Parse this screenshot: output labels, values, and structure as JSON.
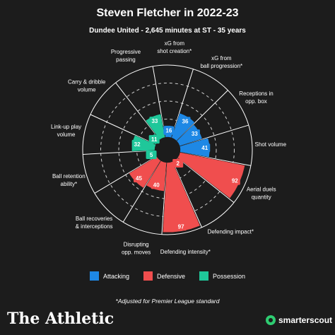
{
  "title": "Steven Fletcher in 2022-23",
  "subtitle": "Dundee United - 2,645 minutes at ST - 35 years",
  "legend": [
    {
      "label": "Attacking",
      "color": "#1e88e5"
    },
    {
      "label": "Defensive",
      "color": "#f04e4e"
    },
    {
      "label": "Possession",
      "color": "#1fc79a"
    }
  ],
  "footnote": "*Adjusted for Premier League standard",
  "brand_left": "The Athletic",
  "brand_right": "smarterscout",
  "colors": {
    "background": "#1c1c1c",
    "attacking": "#1e88e5",
    "defensive": "#f04e4e",
    "possession": "#1fc79a",
    "ring": "#ffffff",
    "brand_green": "#2ecc71"
  },
  "chart_data": {
    "type": "radar",
    "title": "Steven Fletcher in 2022-23",
    "subtitle": "Dundee United - 2,645 minutes at ST - 35 years",
    "range": [
      0,
      100
    ],
    "series": [
      {
        "name": "Attacking",
        "categories": [
          "xG from shot creation*",
          "xG from ball progression*",
          "Receptions in opp. box",
          "Shot volume"
        ],
        "values": [
          16,
          36,
          33,
          41
        ]
      },
      {
        "name": "Defensive",
        "categories": [
          "Aerial duels quantity",
          "Defending impact*",
          "Defending intensity*",
          "Disrupting opp. moves",
          "Ball recoveries & interceptions"
        ],
        "values": [
          92,
          2,
          97,
          40,
          45
        ]
      },
      {
        "name": "Possession",
        "categories": [
          "Ball retention ability*",
          "Link-up play volume",
          "Carry & dribble volume",
          "Progressive passing"
        ],
        "values": [
          5,
          32,
          11,
          33
        ]
      }
    ],
    "metrics": [
      {
        "label": "xG from\nshot creation*",
        "value": 16,
        "group": "Attacking"
      },
      {
        "label": "xG from\nball progression*",
        "value": 36,
        "group": "Attacking"
      },
      {
        "label": "Receptions in\nopp. box",
        "value": 33,
        "group": "Attacking"
      },
      {
        "label": "Shot volume",
        "value": 41,
        "group": "Attacking"
      },
      {
        "label": "Aerial duels\nquantity",
        "value": 92,
        "group": "Defensive"
      },
      {
        "label": "Defending impact*",
        "value": 2,
        "group": "Defensive"
      },
      {
        "label": "Defending intensity*",
        "value": 97,
        "group": "Defensive"
      },
      {
        "label": "Disrupting\nopp. moves",
        "value": 40,
        "group": "Defensive"
      },
      {
        "label": "Ball recoveries\n& interceptions",
        "value": 45,
        "group": "Defensive"
      },
      {
        "label": "Ball retention\nability*",
        "value": 5,
        "group": "Possession"
      },
      {
        "label": "Link-up play\nvolume",
        "value": 32,
        "group": "Possession"
      },
      {
        "label": "Carry & dribble\nvolume",
        "value": 11,
        "group": "Possession"
      },
      {
        "label": "Progressive\npassing",
        "value": 33,
        "group": "Possession"
      }
    ]
  }
}
